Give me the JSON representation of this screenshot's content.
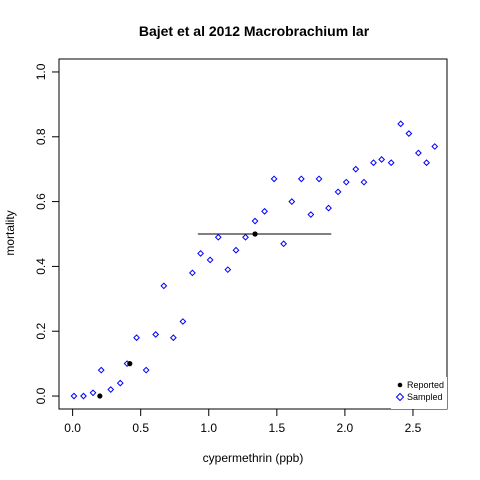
{
  "chart_data": {
    "type": "scatter",
    "title": "Bajet et al 2012 Macrobrachium lar",
    "xlabel": "cypermethrin (ppb)",
    "ylabel": "mortality",
    "xlim": [
      -0.1,
      2.75
    ],
    "ylim": [
      -0.04,
      1.04
    ],
    "x_ticks": [
      0.0,
      0.5,
      1.0,
      1.5,
      2.0,
      2.5
    ],
    "x_tick_labels": [
      "0.0",
      "0.5",
      "1.0",
      "1.5",
      "2.0",
      "2.5"
    ],
    "y_ticks": [
      0.0,
      0.2,
      0.4,
      0.6,
      0.8,
      1.0
    ],
    "y_tick_labels": [
      "0.0",
      "0.2",
      "0.4",
      "0.6",
      "0.8",
      "1.0"
    ],
    "grid": false,
    "legend_position": "bottom-right",
    "series": [
      {
        "name": "Reported",
        "marker": "filled-circle",
        "color": "#000000",
        "x": [
          0.2,
          0.42,
          1.34
        ],
        "y": [
          0.0,
          0.1,
          0.5
        ]
      },
      {
        "name": "Sampled",
        "marker": "open-diamond",
        "color": "#0000ff",
        "x": [
          0.01,
          0.08,
          0.15,
          0.21,
          0.28,
          0.35,
          0.4,
          0.47,
          0.54,
          0.61,
          0.67,
          0.74,
          0.81,
          0.88,
          0.94,
          1.01,
          1.07,
          1.14,
          1.2,
          1.27,
          1.34,
          1.41,
          1.48,
          1.55,
          1.61,
          1.68,
          1.75,
          1.81,
          1.88,
          1.95,
          2.01,
          2.08,
          2.14,
          2.21,
          2.27,
          2.34,
          2.41,
          2.47,
          2.54,
          2.6,
          2.66
        ],
        "y": [
          0.0,
          0.0,
          0.01,
          0.08,
          0.02,
          0.04,
          0.1,
          0.18,
          0.08,
          0.19,
          0.34,
          0.18,
          0.23,
          0.38,
          0.44,
          0.42,
          0.49,
          0.39,
          0.45,
          0.49,
          0.54,
          0.57,
          0.67,
          0.47,
          0.6,
          0.67,
          0.56,
          0.67,
          0.58,
          0.63,
          0.66,
          0.7,
          0.66,
          0.72,
          0.73,
          0.72,
          0.84,
          0.81,
          0.75,
          0.72,
          0.77
        ]
      }
    ],
    "interval": {
      "x_start": 0.92,
      "x_end": 1.9,
      "y": 0.5,
      "color": "#000000"
    }
  }
}
